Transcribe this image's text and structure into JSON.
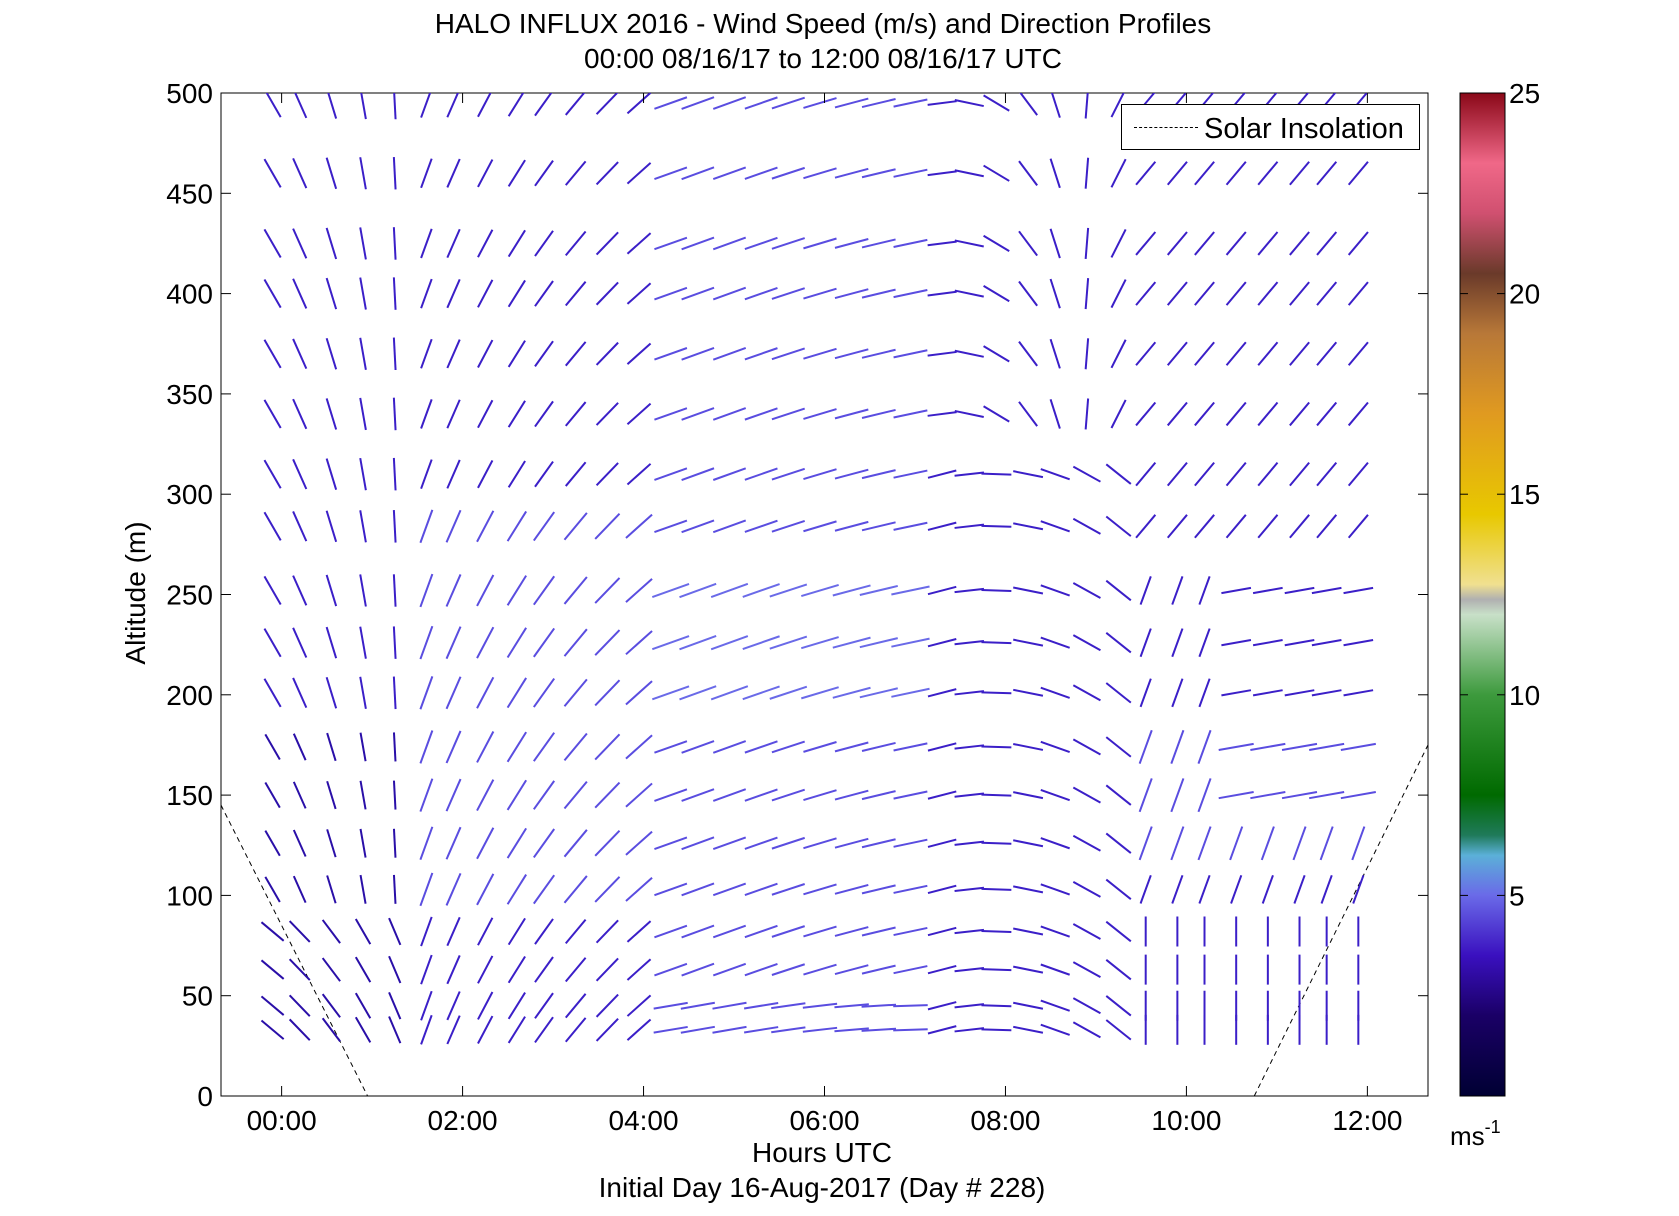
{
  "chart_data": {
    "type": "quiver",
    "title": "HALO INFLUX 2016 - Wind Speed (m/s) and Direction Profiles",
    "subtitle": "00:00 08/16/17 to 12:00 08/16/17  UTC",
    "xlabel": "Hours UTC",
    "xlabel2": "Initial Day 16-Aug-2017 (Day # 228)",
    "ylabel": "Altitude (m)",
    "xlim": [
      -0.67,
      12.67
    ],
    "ylim": [
      0,
      500
    ],
    "x_ticks": [
      0,
      2,
      4,
      6,
      8,
      10,
      12
    ],
    "x_tick_labels": [
      "00:00",
      "02:00",
      "04:00",
      "06:00",
      "08:00",
      "10:00",
      "12:00"
    ],
    "y_ticks": [
      0,
      50,
      100,
      150,
      200,
      250,
      300,
      350,
      400,
      450,
      500
    ],
    "y_tick_labels": [
      "0",
      "50",
      "100",
      "150",
      "200",
      "250",
      "300",
      "350",
      "400",
      "450",
      "500"
    ],
    "colorbar": {
      "range": [
        0,
        25
      ],
      "ticks": [
        5,
        10,
        15,
        20,
        25
      ],
      "tick_labels": [
        "5",
        "10",
        "15",
        "20",
        "25"
      ],
      "unit_label": "ms",
      "unit_exp": "-1"
    },
    "legend": {
      "entries": [
        "Solar Insolation"
      ],
      "position": "top-right"
    },
    "solar_insolation": [
      {
        "x": [
          -0.67,
          0.95
        ],
        "y": [
          145,
          0
        ]
      },
      {
        "x": [
          10.75,
          12.67
        ],
        "y": [
          0,
          175
        ]
      }
    ],
    "grid": false,
    "vector_field": {
      "times": [
        -0.1,
        0.2,
        0.55,
        0.9,
        1.25,
        1.6,
        1.9,
        2.25,
        2.6,
        2.9,
        3.25,
        3.6,
        3.95,
        4.3,
        4.6,
        4.95,
        5.3,
        5.6,
        5.95,
        6.3,
        6.6,
        6.95,
        7.3,
        7.6,
        7.9,
        8.25,
        8.55,
        8.9,
        9.25,
        9.55,
        9.9,
        10.2,
        10.55,
        10.9,
        11.25,
        11.55,
        11.9
      ],
      "altitudes": [
        33,
        45,
        63,
        82,
        103,
        126,
        150,
        174,
        201,
        226,
        252,
        284,
        310,
        340,
        370,
        400,
        425,
        460,
        495
      ],
      "note_units": "speed in m/s, direction in degrees (meteorological, wind from)"
    }
  }
}
